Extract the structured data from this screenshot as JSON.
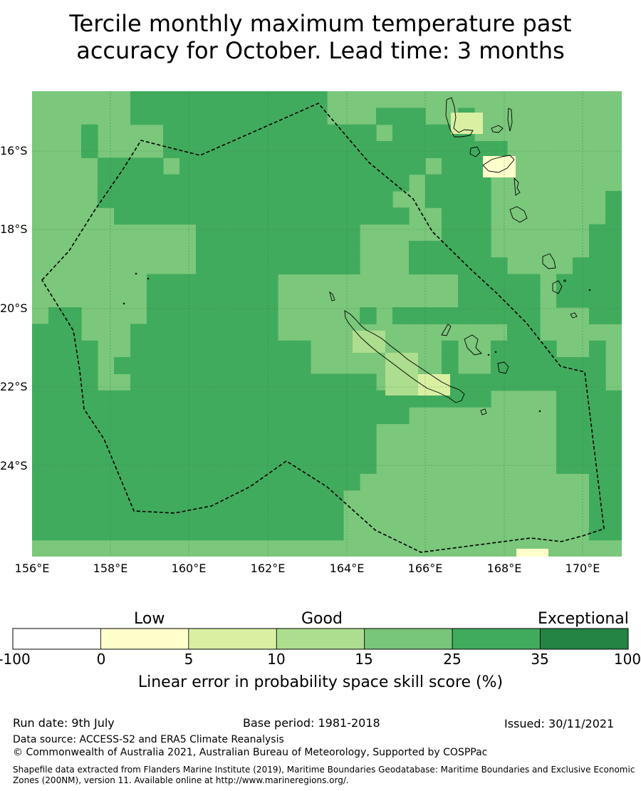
{
  "title": {
    "line1": "Tercile monthly maximum temperature past",
    "line2": "accuracy for October. Lead time: 3 months"
  },
  "map": {
    "lon_range": [
      156,
      171
    ],
    "lat_range": [
      -26.4,
      -14.5
    ],
    "lat_labels": [
      "16°S",
      "18°S",
      "20°S",
      "22°S",
      "24°S"
    ],
    "lon_labels": [
      "156°E",
      "158°E",
      "160°E",
      "162°E",
      "164°E",
      "166°E",
      "168°E",
      "170°E"
    ],
    "grid_origin_lon": 156,
    "grid_origin_lat": -14.5,
    "grid_step_deg": 0.8333,
    "cell_class_rows": [
      "111111222222222222111111111111111111",
      "111111222222222222111222112111111111",
      "111211112222222222222122222111111111",
      "111211112222222222222222222221111111",
      "111122221222222222222222122211111111",
      "111122222222222222222221222211111111",
      "111122222222222222222211222211111112",
      "111112222222222222222221122211111112",
      "111111111122222222221111122211111122",
      "111111111122222222221112222211111122",
      "111111111122222222221112222221111222",
      "111111122222222111111111112222212222",
      "111111122222222111111111112222212222",
      "122111122222222111112122222222211122",
      "222111222222222111111111111112211111",
      "222211222222222221111111121122221121",
      "222212222222222221111111121122222221",
      "222211222222222222222111122222222221",
      "222222222222222222222222222211112222",
      "222222222222222222222221111111112222",
      "222222222222222222222111111111112222",
      "222222222222222222222111111111112222",
      "222222222222222222222111111111112222",
      "222222222222222222221111111111111122",
      "222222222222222222211111111111111122",
      "222222222222222222211111111111111122",
      "222222222222222222211111111111111122",
      "111111111111111111111111111111111111"
    ],
    "colors": {
      "ocean_green": "#7bc77c",
      "mid_green": "#41ab5d",
      "dark_green": "#238b45",
      "pale_green": "#addd8e",
      "light_yellow_green": "#d9f0a3",
      "pale_yellow": "#ffffcc",
      "boundary": "#000000"
    }
  },
  "colorbar": {
    "categories": [
      "Low",
      "Good",
      "Exceptional"
    ],
    "ticks": [
      "-100",
      "0",
      "5",
      "10",
      "15",
      "25",
      "35",
      "100"
    ],
    "colors": [
      "#ffffff",
      "#ffffcc",
      "#d9f0a3",
      "#addd8e",
      "#78c679",
      "#41ab5d",
      "#238443"
    ],
    "title": "Linear error in probability space skill score (%)"
  },
  "footer": {
    "run_date": "Run date: 9th July",
    "base_period": "Base period: 1981-2018",
    "issued": "Issued: 30/11/2021",
    "data_source": "Data source: ACCESS-S2 and ERA5 Climate Reanalysis",
    "copyright": "© Commonwealth of Australia 2021, Australian Bureau of Meteorology, Supported by COSPPac",
    "shapefile_line1": "Shapefile data extracted from Flanders Marine Institute (2019), Maritime Boundaries Geodatabase: Maritime Boundaries and Exclusive Economic",
    "shapefile_line2": "Zones (200NM), version 11. Available online at http://www.marineregions.org/."
  }
}
